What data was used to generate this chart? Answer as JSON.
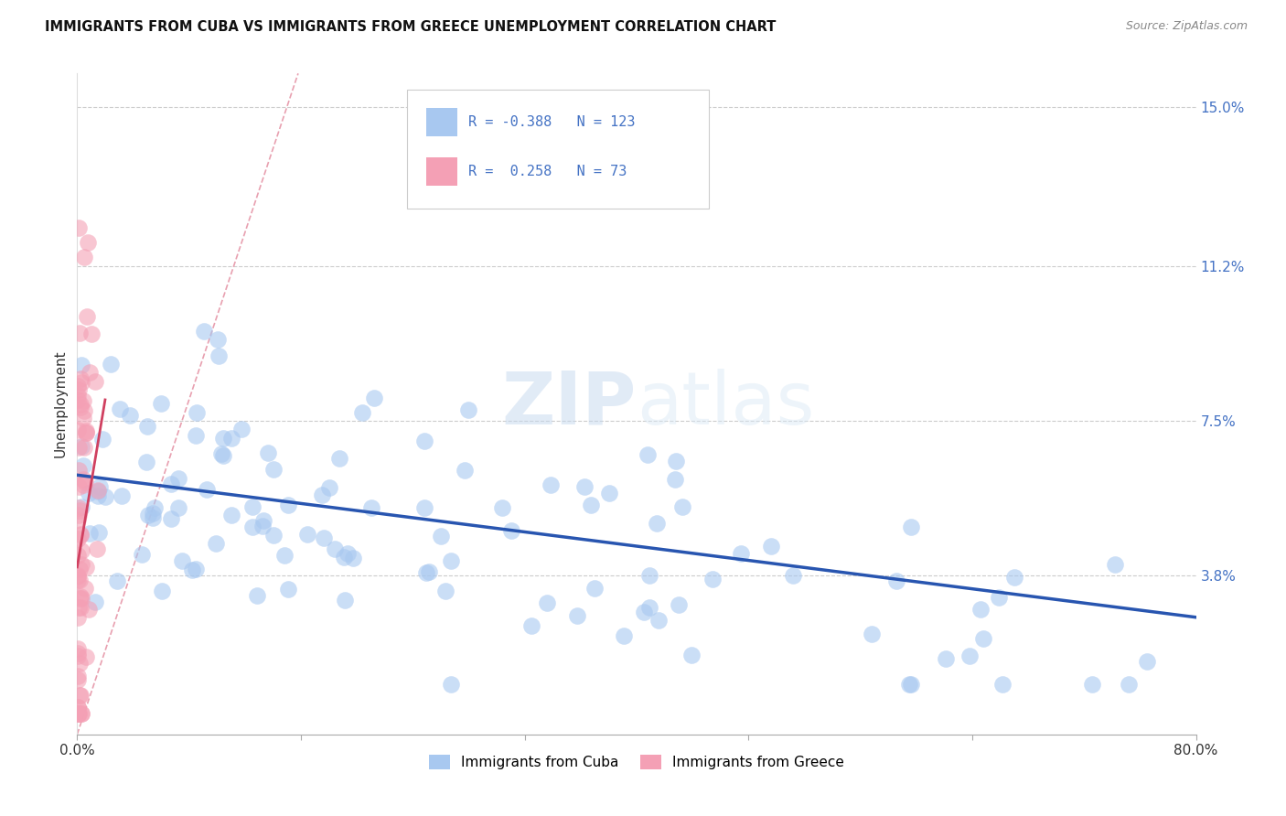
{
  "title": "IMMIGRANTS FROM CUBA VS IMMIGRANTS FROM GREECE UNEMPLOYMENT CORRELATION CHART",
  "source": "Source: ZipAtlas.com",
  "ylabel": "Unemployment",
  "x_min": 0.0,
  "x_max": 0.8,
  "y_min": 0.0,
  "y_max": 0.158,
  "y_ticks": [
    0.038,
    0.075,
    0.112,
    0.15
  ],
  "y_tick_labels": [
    "3.8%",
    "7.5%",
    "11.2%",
    "15.0%"
  ],
  "x_ticks": [
    0.0,
    0.16,
    0.32,
    0.48,
    0.64,
    0.8
  ],
  "x_tick_labels": [
    "0.0%",
    "",
    "",
    "",
    "",
    "80.0%"
  ],
  "cuba_color": "#a8c8f0",
  "greece_color": "#f4a0b5",
  "trendline_cuba_color": "#2855b0",
  "trendline_greece_color": "#d04060",
  "trendline_diag_color": "#e8a0b0",
  "r_cuba": "-0.388",
  "n_cuba": "123",
  "r_greece": "0.258",
  "n_greece": "73",
  "watermark": "ZIPatlas",
  "background_color": "#ffffff",
  "legend_label_cuba": "Immigrants from Cuba",
  "legend_label_greece": "Immigrants from Greece",
  "cuba_trendline": [
    [
      0.0,
      0.062
    ],
    [
      0.8,
      0.028
    ]
  ],
  "greece_trendline": [
    [
      0.0,
      0.04
    ],
    [
      0.02,
      0.08
    ]
  ],
  "diagonal_line": [
    [
      0.0,
      0.0
    ],
    [
      0.158,
      0.158
    ]
  ]
}
